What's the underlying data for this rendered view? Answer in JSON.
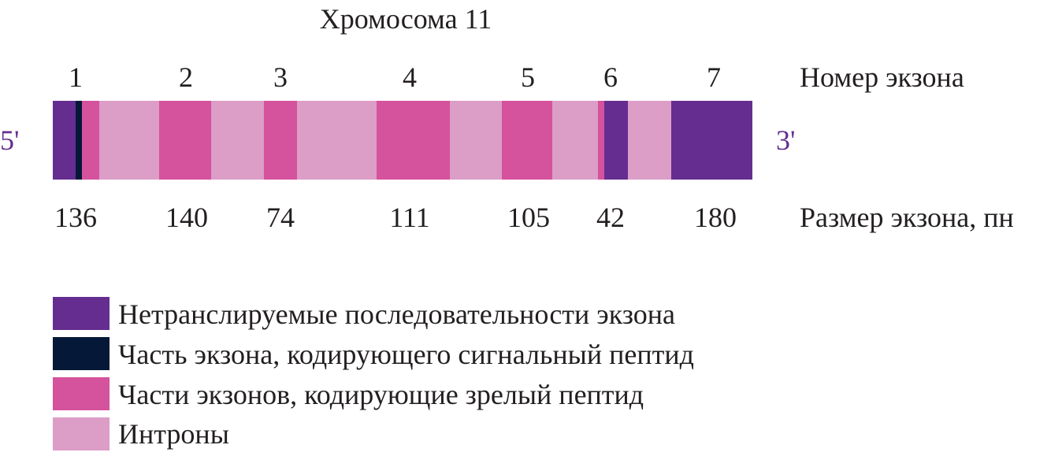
{
  "title": "Хромосома 11",
  "exon_numbers_label": "Номер экзона",
  "exon_sizes_label": "Размер экзона, пн",
  "end_5": "5'",
  "end_3": "3'",
  "exons": [
    {
      "number": "1",
      "size": "136"
    },
    {
      "number": "2",
      "size": "140"
    },
    {
      "number": "3",
      "size": "74"
    },
    {
      "number": "4",
      "size": "111"
    },
    {
      "number": "5",
      "size": "105"
    },
    {
      "number": "6",
      "size": "42"
    },
    {
      "number": "7",
      "size": "180"
    }
  ],
  "segments": [
    "utr",
    "signal",
    "mature",
    "intron",
    "mature",
    "intron",
    "mature",
    "intron",
    "mature",
    "intron",
    "mature",
    "intron",
    "mature",
    "utr",
    "intron",
    "utr"
  ],
  "legend": [
    {
      "label": "Нетранслируемые последовательности экзона",
      "color": "#652d90"
    },
    {
      "label": "Часть экзона, кодирующего сигнальный пептид",
      "color": "#061838"
    },
    {
      "label": "Части экзонов, кодирующие зрелый пептид",
      "color": "#d5529c"
    },
    {
      "label": "Интроны",
      "color": "#dc9dc7"
    }
  ],
  "end_label_color": "#652d90"
}
